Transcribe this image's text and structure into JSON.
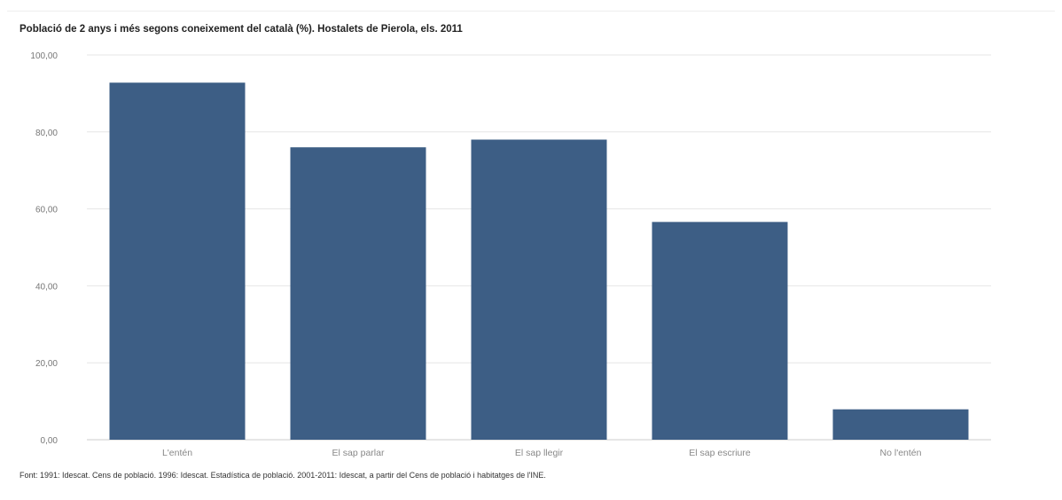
{
  "chart_data": {
    "type": "bar",
    "title": "Població de 2 anys i més segons coneixement del català (%). Hostalets de Pierola, els. 2011",
    "source": "Font: 1991: Idescat. Cens de població. 1996: Idescat. Estadística de població. 2001-2011: Idescat, a partir del Cens de població i habitatges de l'INE.",
    "categories": [
      "L'entén",
      "El sap parlar",
      "El sap llegir",
      "El sap escriure",
      "No l'entén"
    ],
    "values": [
      92.8,
      76.0,
      78.0,
      56.6,
      7.9
    ],
    "ylim": [
      0,
      100
    ],
    "yticks": [
      0,
      20,
      40,
      60,
      80,
      100
    ],
    "ytick_labels": [
      "0,00",
      "20,00",
      "40,00",
      "60,00",
      "80,00",
      "100,00"
    ],
    "xlabel": "",
    "ylabel": "",
    "grid": true,
    "colors": {
      "bar": "#3d5e85",
      "grid": "#e6e6e6",
      "baseline": "#cccccc"
    }
  }
}
